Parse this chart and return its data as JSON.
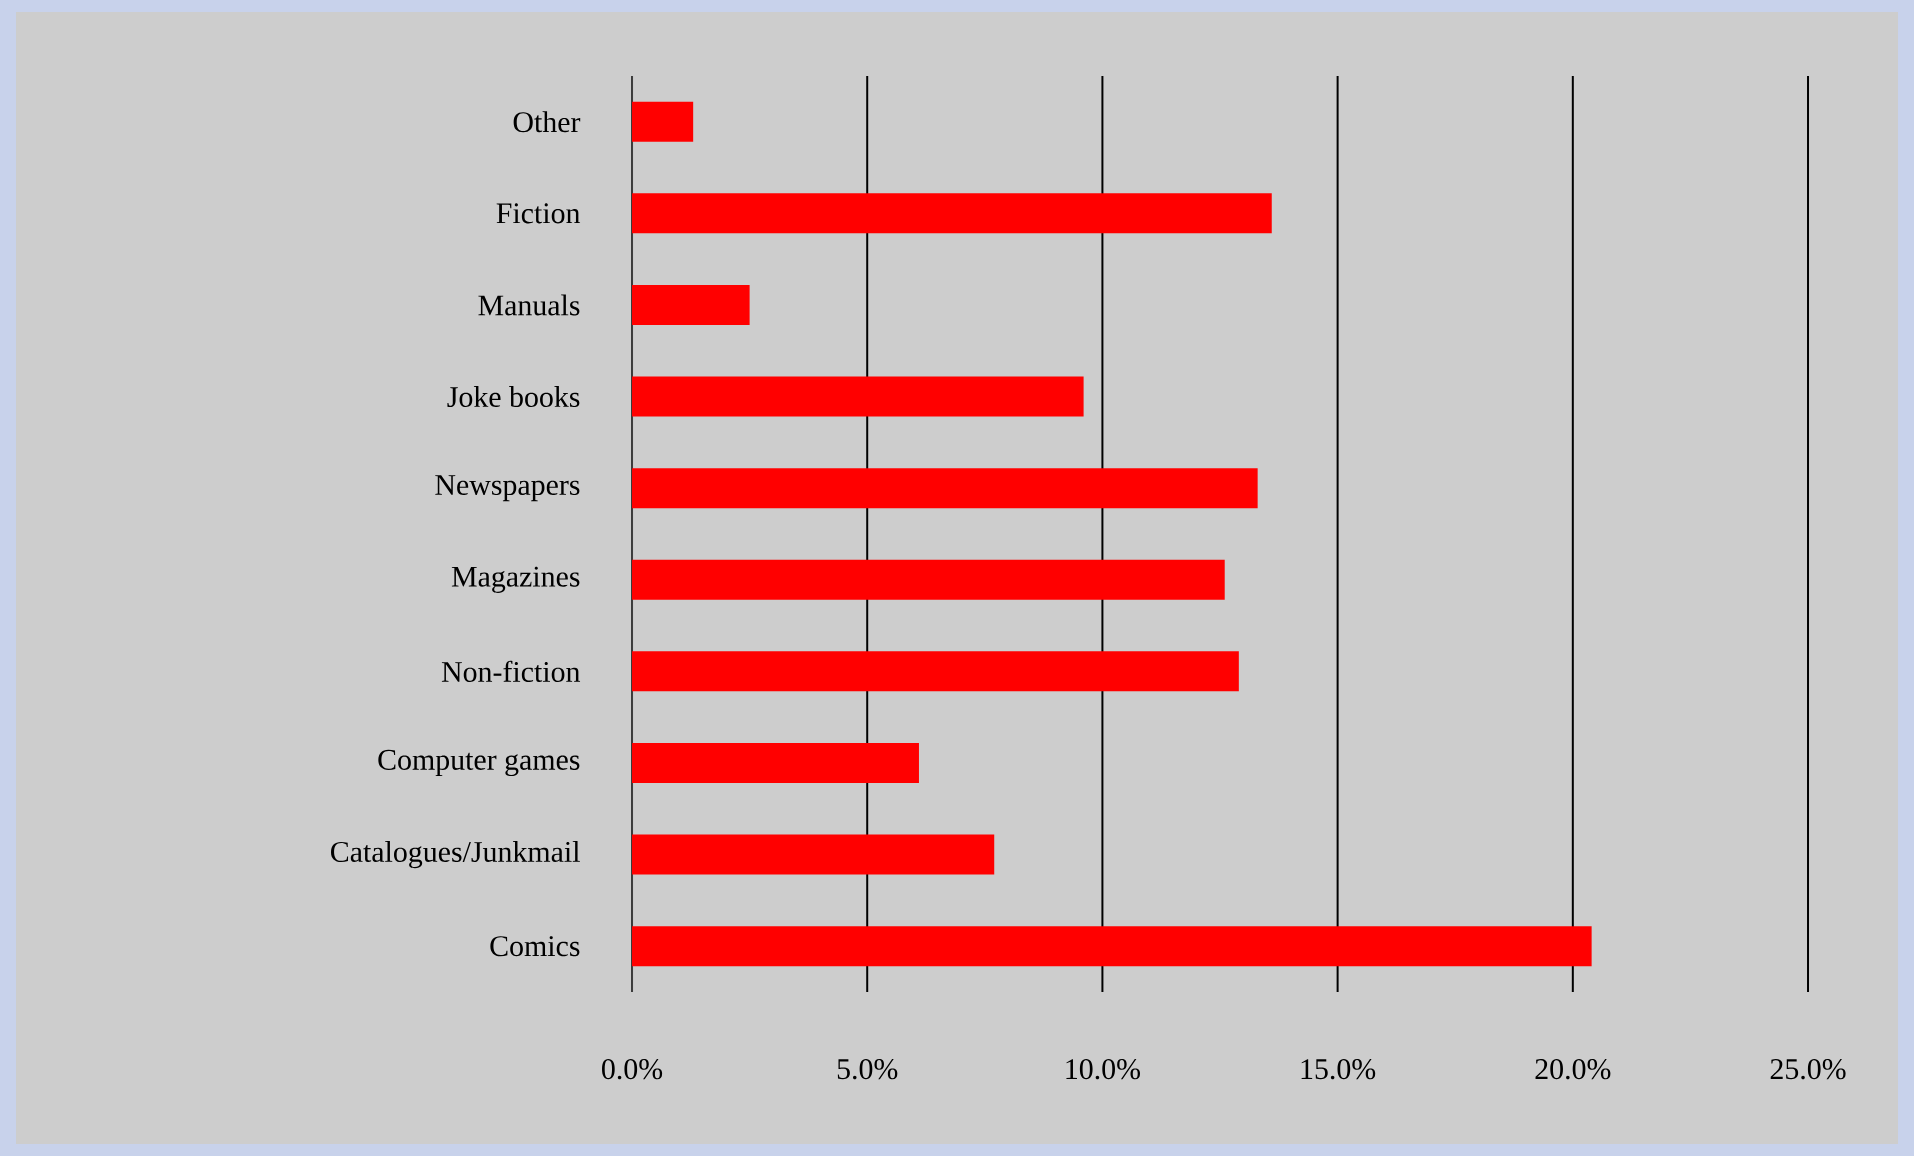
{
  "chart_data": {
    "type": "bar",
    "orientation": "horizontal",
    "categories": [
      "Other",
      "Fiction",
      "Manuals",
      "Joke books",
      "Newspapers",
      "Magazines",
      "Non-fiction",
      "Computer games",
      "Catalogues/Junkmail",
      "Comics"
    ],
    "values": [
      1.3,
      13.6,
      2.5,
      9.6,
      13.3,
      12.6,
      12.9,
      6.1,
      7.7,
      20.4
    ],
    "color": "#ff0000",
    "xlim": [
      0,
      25
    ],
    "xticks": [
      {
        "value": 0,
        "label": "0.0%"
      },
      {
        "value": 5,
        "label": "5.0%"
      },
      {
        "value": 10,
        "label": "10.0%"
      },
      {
        "value": 15,
        "label": "15.0%"
      },
      {
        "value": 20,
        "label": "20.0%"
      },
      {
        "value": 25,
        "label": "25.0%"
      }
    ],
    "grid": "x"
  }
}
